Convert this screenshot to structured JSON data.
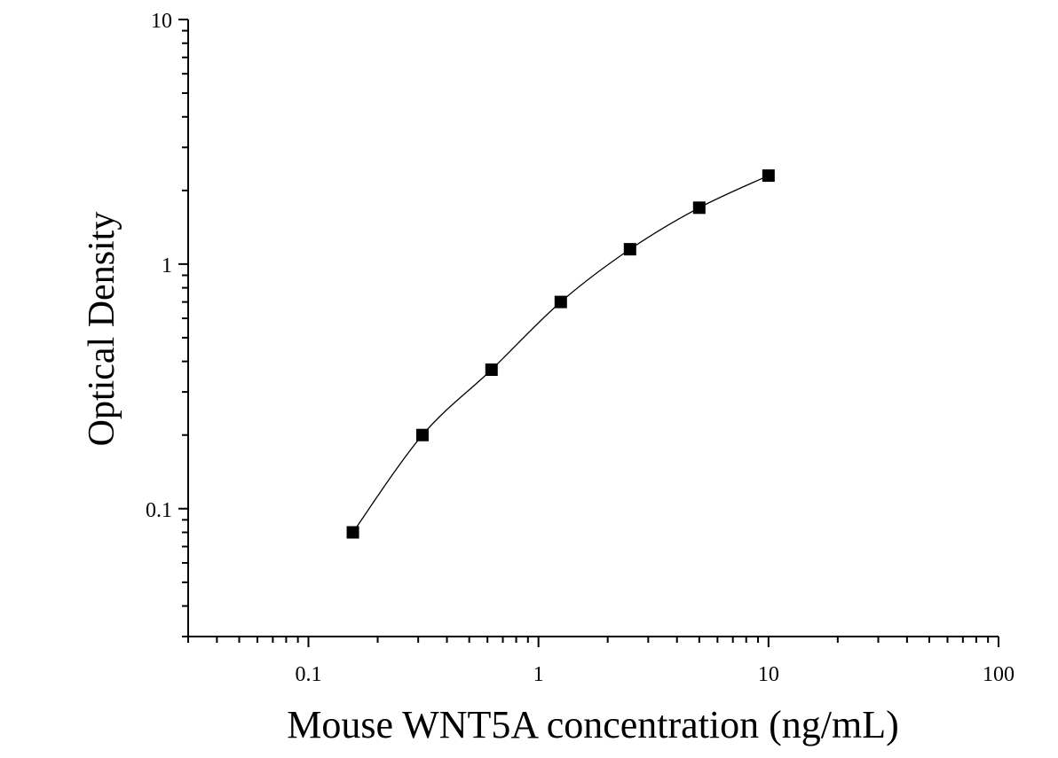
{
  "chart_data": {
    "type": "scatter",
    "title": "",
    "xlabel": "Mouse WNT5A concentration (ng/mL)",
    "ylabel": "Optical Density",
    "x_scale": "log",
    "y_scale": "log",
    "xlim": [
      0.03,
      100
    ],
    "ylim": [
      0.03,
      10
    ],
    "x_ticks": [
      {
        "value": 0.1,
        "label": "0.1"
      },
      {
        "value": 1,
        "label": "1"
      },
      {
        "value": 10,
        "label": "10"
      },
      {
        "value": 100,
        "label": "100"
      }
    ],
    "y_ticks": [
      {
        "value": 0.1,
        "label": "0.1"
      },
      {
        "value": 1,
        "label": "1"
      },
      {
        "value": 10,
        "label": "10"
      }
    ],
    "grid": false,
    "legend": "none",
    "marker": "square",
    "color": "#000000",
    "series": [
      {
        "points": [
          {
            "x": 0.156,
            "y": 0.08
          },
          {
            "x": 0.313,
            "y": 0.2
          },
          {
            "x": 0.625,
            "y": 0.37
          },
          {
            "x": 1.25,
            "y": 0.7
          },
          {
            "x": 2.5,
            "y": 1.15
          },
          {
            "x": 5,
            "y": 1.7
          },
          {
            "x": 10,
            "y": 2.3
          }
        ]
      }
    ],
    "fit_curve": true
  }
}
